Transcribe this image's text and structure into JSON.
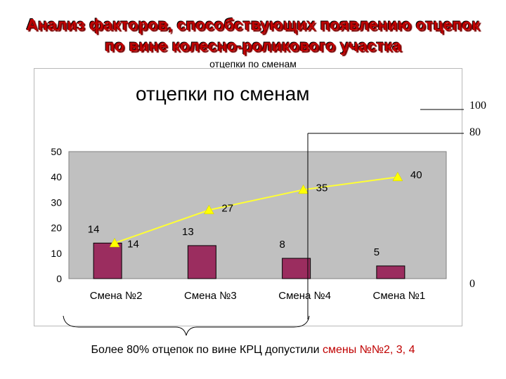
{
  "slide": {
    "title_line1": "Анализ факторов, способствующих появлению отцепок",
    "title_line2": "по вине колесно-роликового участка",
    "subtitle": "отцепки по сменам",
    "side_labels": [
      "100",
      "80",
      "0"
    ],
    "footnote_prefix": "Более 80% отцепок по вине КРЦ допустили ",
    "footnote_highlight": "смены №№2, 3, 4"
  },
  "colors": {
    "bar": "#9b2d5f",
    "line": "#ffff33",
    "marker": "#ffff00",
    "plot_bg": "#c0c0c0",
    "title_red": "#c00000"
  },
  "chart_data": {
    "type": "bar",
    "title": "отцепки по сменам",
    "categories": [
      "Смена №2",
      "Смена №3",
      "Смена №4",
      "Смена №1"
    ],
    "ylim": [
      0,
      50
    ],
    "yticks": [
      "0",
      "10",
      "20",
      "30",
      "40",
      "50"
    ],
    "grid": false,
    "series": [
      {
        "type": "bar",
        "values": [
          14,
          13,
          8,
          5
        ],
        "labels": [
          "14",
          "13",
          "8",
          "5"
        ]
      },
      {
        "type": "line",
        "values": [
          14,
          27,
          35,
          40
        ],
        "labels": [
          "14",
          "27",
          "35",
          "40"
        ]
      }
    ]
  }
}
